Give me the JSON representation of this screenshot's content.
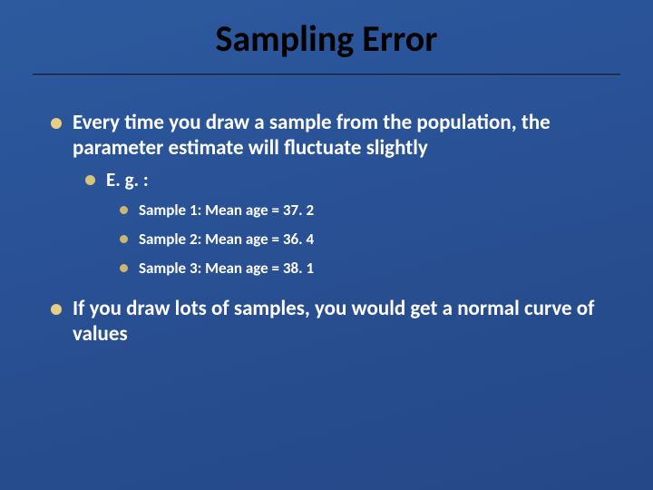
{
  "slide": {
    "title": "Sampling Error",
    "background_gradient": [
      "#2d5a9e",
      "#2a5398",
      "#284e90",
      "#254888"
    ],
    "title_color": "#000000",
    "rule_color": "#1a2f52",
    "text_color": "#ffffff",
    "bullet_color_l1": "#e6cf85",
    "bullet_color_l2": "#d9c27a",
    "bullet_color_l3": "#cdb66f",
    "font_family": "Calibri",
    "title_fontsize": 40,
    "l1_fontsize": 23,
    "l2_fontsize": 21,
    "l3_fontsize": 17,
    "bullets": {
      "l1_a": "Every time you draw a sample from the population, the parameter estimate will fluctuate slightly",
      "l2_a": "E. g. :",
      "l3_a": "Sample 1:  Mean age = 37. 2",
      "l3_b": "Sample 2:  Mean age = 36. 4",
      "l3_c": "Sample 3:  Mean age = 38. 1",
      "l1_b": "If you draw lots of samples, you would get a normal curve of values"
    }
  }
}
